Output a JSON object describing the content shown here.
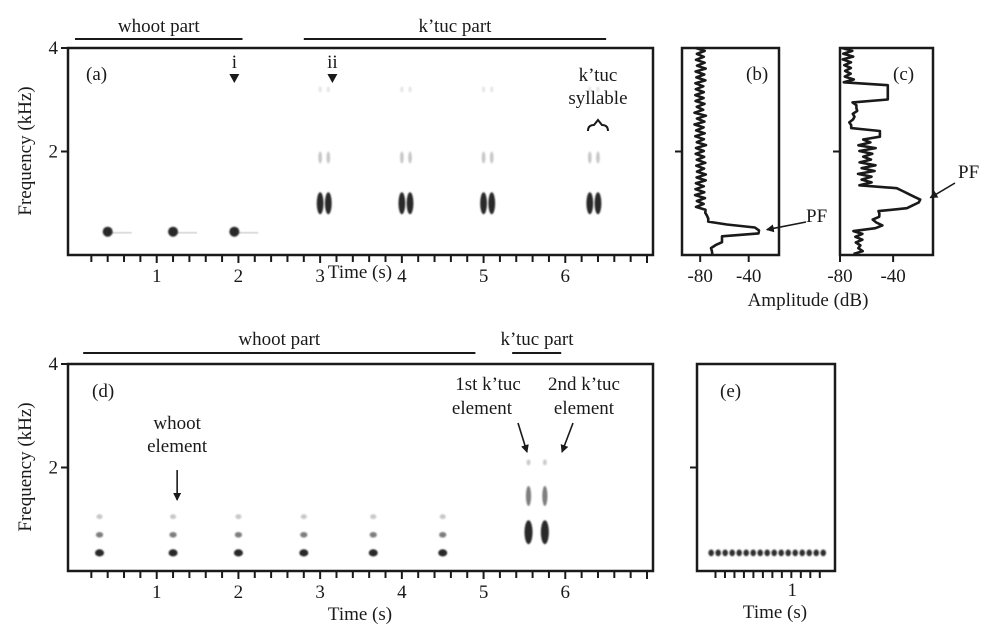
{
  "colors": {
    "ink": "#1a1a1a",
    "background": "#ffffff"
  },
  "chart_data": [
    {
      "panel": "(a)",
      "type": "spectrogram",
      "xlabel": "Time (s)",
      "ylabel": "Frequency (kHz)",
      "xlim": [
        0,
        7
      ],
      "ylim": [
        0,
        4
      ],
      "x_ticks": [
        1,
        2,
        3,
        4,
        5,
        6
      ],
      "y_ticks": [
        2,
        4
      ],
      "segments": [
        {
          "label": "whoot part",
          "start": 0,
          "end": 2.05
        },
        {
          "label": "k’tuc part",
          "start": 2.8,
          "end": 6.5
        }
      ],
      "markers": [
        {
          "label": "i",
          "time": 1.95
        },
        {
          "label": "ii",
          "time": 3.15
        }
      ],
      "annotation": {
        "line1": "k’tuc",
        "line2": "syllable",
        "time": 6.4
      },
      "whoot_elements": [
        {
          "time": 0.4,
          "freq": 0.45
        },
        {
          "time": 1.2,
          "freq": 0.45
        },
        {
          "time": 1.95,
          "freq": 0.45
        }
      ],
      "ktuc_syllables": [
        3.05,
        4.05,
        5.05,
        6.35
      ],
      "ktuc_bands_khz": [
        1.0,
        2.0,
        3.2
      ]
    },
    {
      "panel": "(b)",
      "type": "line",
      "xlabel": "Amplitude (dB)",
      "xlim": [
        -95,
        -15
      ],
      "x_ticks": [
        -80,
        -40
      ],
      "ylim": [
        0,
        4
      ],
      "peak_label": "PF",
      "peak": {
        "amplitude": -30,
        "freq": 0.45
      }
    },
    {
      "panel": "(c)",
      "type": "line",
      "xlim": [
        -80,
        -10
      ],
      "x_ticks": [
        -80,
        -40
      ],
      "ylim": [
        0,
        4
      ],
      "peak_label": "PF",
      "peak": {
        "amplitude": -18,
        "freq": 1.05
      }
    },
    {
      "panel": "(d)",
      "type": "spectrogram",
      "xlabel": "Time (s)",
      "ylabel": "Frequency (kHz)",
      "xlim": [
        0,
        7
      ],
      "ylim": [
        0,
        4
      ],
      "x_ticks": [
        1,
        2,
        3,
        4,
        5,
        6
      ],
      "y_ticks": [
        2,
        4
      ],
      "segments": [
        {
          "label": "whoot part",
          "start": 0.1,
          "end": 4.9
        },
        {
          "label": "k’tuc part",
          "start": 5.35,
          "end": 5.95
        }
      ],
      "labels": [
        {
          "line1": "whoot",
          "line2": "element",
          "time": 1.25
        },
        {
          "line1": "1st k’tuc",
          "line2": "element",
          "time": 5.55
        },
        {
          "line1": "2nd k’tuc",
          "line2": "element",
          "time": 5.75
        }
      ],
      "whoot_elements": [
        0.3,
        1.2,
        2.0,
        2.8,
        3.65,
        4.5
      ],
      "whoot_bands_khz": [
        0.35,
        0.7,
        1.05
      ],
      "ktuc_elements": [
        5.55,
        5.75
      ]
    },
    {
      "panel": "(e)",
      "type": "spectrogram",
      "xlabel": "Time (s)",
      "xlim": [
        0,
        1.45
      ],
      "ylim": [
        0,
        4
      ],
      "x_ticks": [
        1
      ],
      "y_ticks": [
        2
      ],
      "pulse_count": 17,
      "pulse_freq_khz": 0.35
    }
  ]
}
